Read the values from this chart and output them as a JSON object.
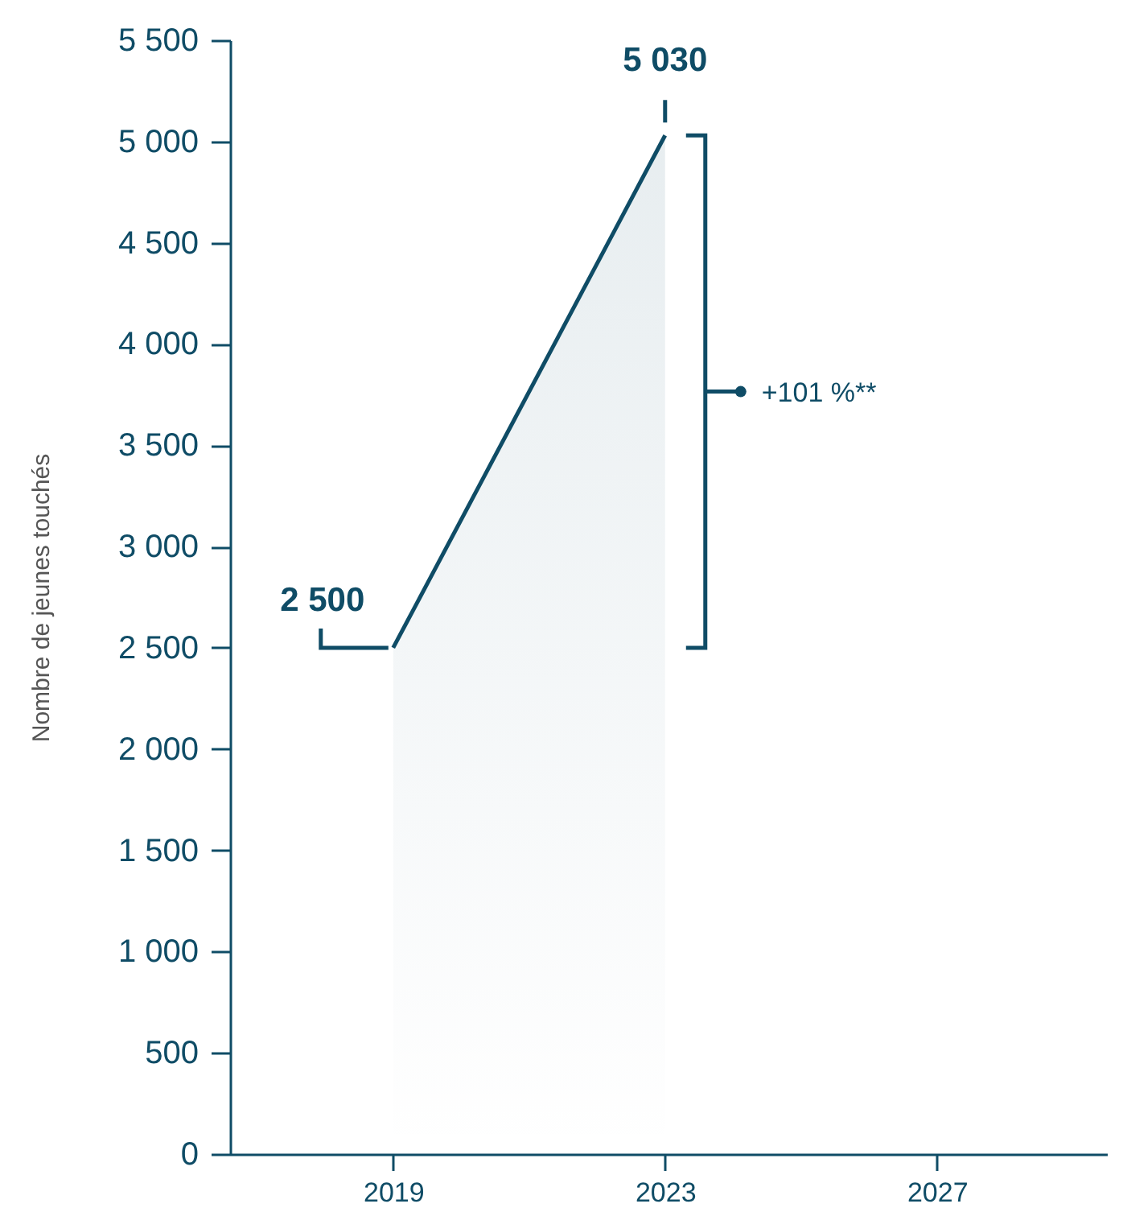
{
  "chart_data": {
    "type": "area",
    "ylabel": "Nombre de jeunes touchés",
    "x": [
      2019,
      2023
    ],
    "series": [
      {
        "color": "#0f4c66",
        "values": [
          2500,
          5030
        ]
      }
    ],
    "value_labels": [
      "2 500",
      "5 030"
    ],
    "annotations": [
      "+101 %**"
    ],
    "xlim": [
      2016.6,
      2029.5
    ],
    "xticks": [
      2019,
      2023,
      2027
    ],
    "ylim": [
      0,
      5500
    ],
    "yticks": [
      0,
      500,
      {
        "value": 1000,
        "label": "1 000"
      },
      {
        "value": 1500,
        "label": "1 500"
      },
      {
        "value": 2000,
        "label": "2 000"
      },
      {
        "value": 2500,
        "label": "2 500"
      },
      {
        "value": 3000,
        "label": "3 000"
      },
      {
        "value": 3500,
        "label": "3 500"
      },
      {
        "value": 4000,
        "label": "4 000"
      },
      {
        "value": 4500,
        "label": "4 500"
      },
      {
        "value": 5000,
        "label": "5 000"
      },
      {
        "value": 5500,
        "label": "5 500"
      }
    ],
    "grid": false
  }
}
